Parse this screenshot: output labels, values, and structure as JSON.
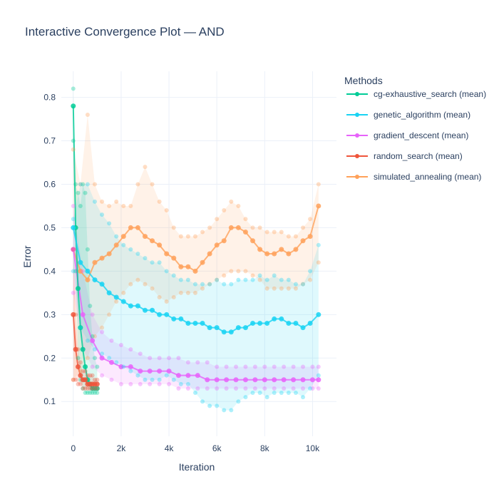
{
  "chart_data": {
    "type": "line",
    "title": "Interactive Convergence Plot — AND",
    "xlabel": "Iteration",
    "ylabel": "Error",
    "xlim": [
      -500,
      11000
    ],
    "ylim": [
      0.02,
      0.86
    ],
    "x_ticks": [
      0,
      2000,
      4000,
      6000,
      8000,
      10000
    ],
    "x_tick_labels": [
      "0",
      "2k",
      "4k",
      "6k",
      "8k",
      "10k"
    ],
    "y_ticks": [
      0.1,
      0.2,
      0.3,
      0.4,
      0.5,
      0.6,
      0.7,
      0.8
    ],
    "y_tick_labels": [
      "0.1",
      "0.2",
      "0.3",
      "0.4",
      "0.5",
      "0.6",
      "0.7",
      "0.8"
    ],
    "grid": true,
    "legend_title": "Methods",
    "legend_position": "right",
    "series": [
      {
        "name": "cg-exhaustive_search (mean)",
        "color": "#00cc96",
        "x": [
          0,
          100,
          200,
          300,
          400,
          500,
          600,
          700,
          800,
          900,
          1000
        ],
        "mean": [
          0.78,
          0.5,
          0.36,
          0.27,
          0.22,
          0.18,
          0.15,
          0.14,
          0.13,
          0.13,
          0.13
        ],
        "upper": [
          0.82,
          0.6,
          0.58,
          0.55,
          0.6,
          0.58,
          0.45,
          0.32,
          0.25,
          0.2,
          0.18
        ],
        "lower": [
          0.7,
          0.4,
          0.2,
          0.15,
          0.13,
          0.12,
          0.12,
          0.12,
          0.12,
          0.12,
          0.12
        ]
      },
      {
        "name": "genetic_algorithm (mean)",
        "color": "#19d3f3",
        "x": [
          0,
          300,
          600,
          900,
          1200,
          1500,
          1800,
          2100,
          2400,
          2700,
          3000,
          3300,
          3600,
          3900,
          4200,
          4500,
          4800,
          5100,
          5400,
          5700,
          6000,
          6300,
          6600,
          6900,
          7200,
          7500,
          7800,
          8100,
          8400,
          8700,
          9000,
          9300,
          9600,
          9900,
          10250
        ],
        "mean": [
          0.5,
          0.42,
          0.4,
          0.38,
          0.37,
          0.35,
          0.34,
          0.33,
          0.32,
          0.32,
          0.31,
          0.31,
          0.3,
          0.3,
          0.29,
          0.29,
          0.28,
          0.28,
          0.28,
          0.27,
          0.27,
          0.26,
          0.26,
          0.27,
          0.27,
          0.28,
          0.28,
          0.28,
          0.29,
          0.29,
          0.28,
          0.28,
          0.27,
          0.28,
          0.3
        ],
        "upper": [
          0.52,
          0.6,
          0.6,
          0.56,
          0.53,
          0.51,
          0.48,
          0.46,
          0.45,
          0.44,
          0.43,
          0.42,
          0.42,
          0.4,
          0.39,
          0.38,
          0.38,
          0.37,
          0.37,
          0.37,
          0.38,
          0.37,
          0.37,
          0.38,
          0.38,
          0.38,
          0.39,
          0.38,
          0.39,
          0.38,
          0.38,
          0.37,
          0.37,
          0.4,
          0.46
        ],
        "lower": [
          0.4,
          0.27,
          0.24,
          0.22,
          0.21,
          0.2,
          0.19,
          0.18,
          0.17,
          0.16,
          0.15,
          0.15,
          0.15,
          0.16,
          0.15,
          0.14,
          0.14,
          0.12,
          0.1,
          0.09,
          0.09,
          0.08,
          0.08,
          0.1,
          0.11,
          0.12,
          0.12,
          0.11,
          0.12,
          0.12,
          0.12,
          0.12,
          0.11,
          0.13,
          0.16
        ]
      },
      {
        "name": "gradient_descent (mean)",
        "color": "#e763fa",
        "x": [
          0,
          400,
          800,
          1200,
          1600,
          2000,
          2400,
          2800,
          3200,
          3600,
          4000,
          4400,
          4800,
          5200,
          5600,
          6000,
          6400,
          6800,
          7200,
          7600,
          8000,
          8400,
          8800,
          9200,
          9600,
          10000,
          10250
        ],
        "mean": [
          0.45,
          0.3,
          0.24,
          0.2,
          0.19,
          0.18,
          0.18,
          0.17,
          0.17,
          0.17,
          0.17,
          0.16,
          0.16,
          0.16,
          0.15,
          0.15,
          0.15,
          0.15,
          0.15,
          0.15,
          0.15,
          0.15,
          0.15,
          0.15,
          0.15,
          0.15,
          0.15
        ],
        "upper": [
          0.55,
          0.4,
          0.3,
          0.26,
          0.24,
          0.23,
          0.22,
          0.21,
          0.2,
          0.2,
          0.2,
          0.2,
          0.19,
          0.19,
          0.19,
          0.18,
          0.18,
          0.18,
          0.18,
          0.18,
          0.18,
          0.18,
          0.18,
          0.18,
          0.18,
          0.18,
          0.18
        ],
        "lower": [
          0.35,
          0.22,
          0.18,
          0.16,
          0.15,
          0.14,
          0.14,
          0.14,
          0.14,
          0.14,
          0.14,
          0.13,
          0.13,
          0.13,
          0.13,
          0.13,
          0.13,
          0.13,
          0.13,
          0.13,
          0.13,
          0.13,
          0.13,
          0.13,
          0.13,
          0.13,
          0.13
        ]
      },
      {
        "name": "random_search (mean)",
        "color": "#ef553b",
        "x": [
          0,
          100,
          200,
          300,
          400,
          500,
          600,
          700,
          800,
          900,
          1000
        ],
        "mean": [
          0.3,
          0.22,
          0.18,
          0.16,
          0.15,
          0.15,
          0.14,
          0.14,
          0.14,
          0.14,
          0.14
        ],
        "upper": [
          0.45,
          0.3,
          0.22,
          0.19,
          0.17,
          0.17,
          0.16,
          0.16,
          0.16,
          0.15,
          0.15
        ],
        "lower": [
          0.15,
          0.15,
          0.14,
          0.14,
          0.13,
          0.13,
          0.13,
          0.13,
          0.13,
          0.13,
          0.13
        ]
      },
      {
        "name": "simulated_annealing (mean)",
        "color": "#ffa15a",
        "x": [
          0,
          300,
          600,
          900,
          1200,
          1500,
          1800,
          2100,
          2400,
          2700,
          3000,
          3300,
          3600,
          3900,
          4200,
          4500,
          4800,
          5100,
          5400,
          5700,
          6000,
          6300,
          6600,
          6900,
          7200,
          7500,
          7800,
          8100,
          8400,
          8700,
          9000,
          9300,
          9600,
          9900,
          10250
        ],
        "mean": [
          0.45,
          0.4,
          0.38,
          0.42,
          0.43,
          0.44,
          0.46,
          0.48,
          0.5,
          0.5,
          0.48,
          0.47,
          0.46,
          0.44,
          0.43,
          0.41,
          0.41,
          0.4,
          0.42,
          0.44,
          0.46,
          0.47,
          0.5,
          0.5,
          0.49,
          0.47,
          0.45,
          0.44,
          0.44,
          0.45,
          0.44,
          0.45,
          0.47,
          0.48,
          0.55
        ],
        "upper": [
          0.68,
          0.6,
          0.76,
          0.6,
          0.56,
          0.55,
          0.56,
          0.55,
          0.55,
          0.6,
          0.64,
          0.6,
          0.56,
          0.54,
          0.5,
          0.48,
          0.48,
          0.48,
          0.49,
          0.5,
          0.52,
          0.54,
          0.56,
          0.55,
          0.52,
          0.5,
          0.5,
          0.49,
          0.49,
          0.49,
          0.48,
          0.48,
          0.5,
          0.52,
          0.6
        ],
        "lower": [
          0.15,
          0.17,
          0.2,
          0.25,
          0.27,
          0.3,
          0.33,
          0.35,
          0.37,
          0.38,
          0.37,
          0.36,
          0.34,
          0.33,
          0.34,
          0.35,
          0.35,
          0.35,
          0.36,
          0.37,
          0.38,
          0.39,
          0.4,
          0.4,
          0.4,
          0.39,
          0.38,
          0.36,
          0.36,
          0.36,
          0.36,
          0.36,
          0.37,
          0.38,
          0.42
        ]
      }
    ]
  }
}
